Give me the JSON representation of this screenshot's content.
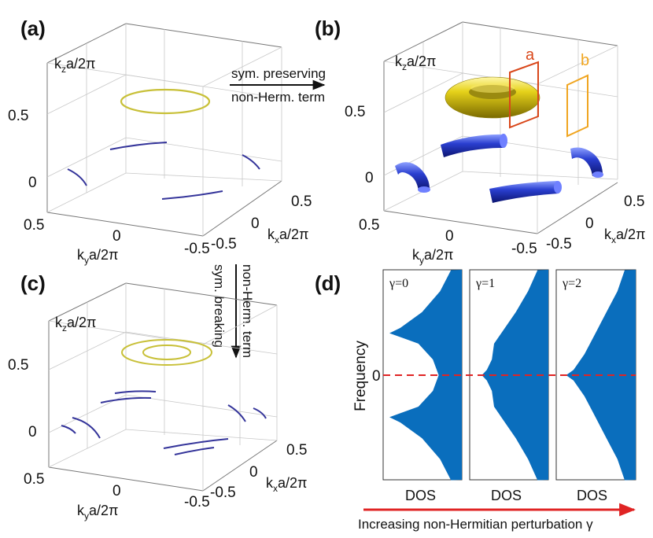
{
  "panels": {
    "a": "(a)",
    "b": "(b)",
    "c": "(c)",
    "d": "(d)"
  },
  "axes": {
    "kz_main": "k",
    "kz_sub": "z",
    "kx_main": "k",
    "kx_sub": "x",
    "ky_main": "k",
    "ky_sub": "y",
    "unit": "a/2π"
  },
  "ticks": {
    "z_hi": "0.5",
    "z_lo": "0",
    "x_hi": "0.5",
    "x_mid": "0",
    "x_lo": "-0.5",
    "y_hi": "0.5",
    "y_mid": "0",
    "y_lo": "-0.5"
  },
  "arrows": {
    "preserving_line1": "sym. preserving",
    "preserving_line2": "non-Herm. term",
    "breaking_line1": "sym. breaking",
    "breaking_line2": "non-Herm. term"
  },
  "loop_labels": {
    "a": "a",
    "b": "b"
  },
  "dos": {
    "ylabel": "Frequency",
    "zero_tick": "0",
    "xlabel": "DOS",
    "gammas": [
      "γ=0",
      "γ=1",
      "γ=2"
    ],
    "bottom_caption": "Increasing non-Hermitian perturbation γ"
  },
  "colors": {
    "nodal_line_gold": "#c8c038",
    "nodal_line_blue": "#34349a",
    "torus_gold": "#e6d21a",
    "tube_blue": "#2a3fd0",
    "loop_a": "#d9471a",
    "loop_b": "#f0a520",
    "dos_fill": "#0a6ebd",
    "fermi_dash": "#e02424",
    "perturbation_arrow": "#e02424"
  },
  "chart_data": {
    "type": "area",
    "ylabel": "Frequency",
    "xlabel": "DOS",
    "panels": [
      {
        "name": "γ=0",
        "frequency": [
          -1.0,
          -0.8,
          -0.6,
          -0.45,
          -0.4,
          -0.3,
          -0.15,
          0,
          0.15,
          0.3,
          0.4,
          0.45,
          0.6,
          0.8,
          1.0
        ],
        "dos": [
          0.15,
          0.3,
          0.55,
          0.85,
          1.0,
          0.6,
          0.4,
          0.32,
          0.4,
          0.6,
          1.0,
          0.85,
          0.55,
          0.3,
          0.15
        ]
      },
      {
        "name": "γ=1",
        "frequency": [
          -1.0,
          -0.8,
          -0.6,
          -0.45,
          -0.3,
          -0.15,
          -0.05,
          0,
          0.05,
          0.15,
          0.3,
          0.45,
          0.6,
          0.8,
          1.0
        ],
        "dos": [
          0.15,
          0.28,
          0.45,
          0.6,
          0.75,
          0.78,
          0.85,
          0.92,
          0.85,
          0.78,
          0.75,
          0.6,
          0.45,
          0.28,
          0.15
        ]
      },
      {
        "name": "γ=2",
        "frequency": [
          -1.0,
          -0.8,
          -0.6,
          -0.4,
          -0.2,
          -0.05,
          0,
          0.05,
          0.2,
          0.4,
          0.6,
          0.8,
          1.0
        ],
        "dos": [
          0.15,
          0.25,
          0.4,
          0.55,
          0.7,
          0.85,
          0.95,
          0.85,
          0.7,
          0.55,
          0.4,
          0.25,
          0.15
        ]
      }
    ]
  }
}
